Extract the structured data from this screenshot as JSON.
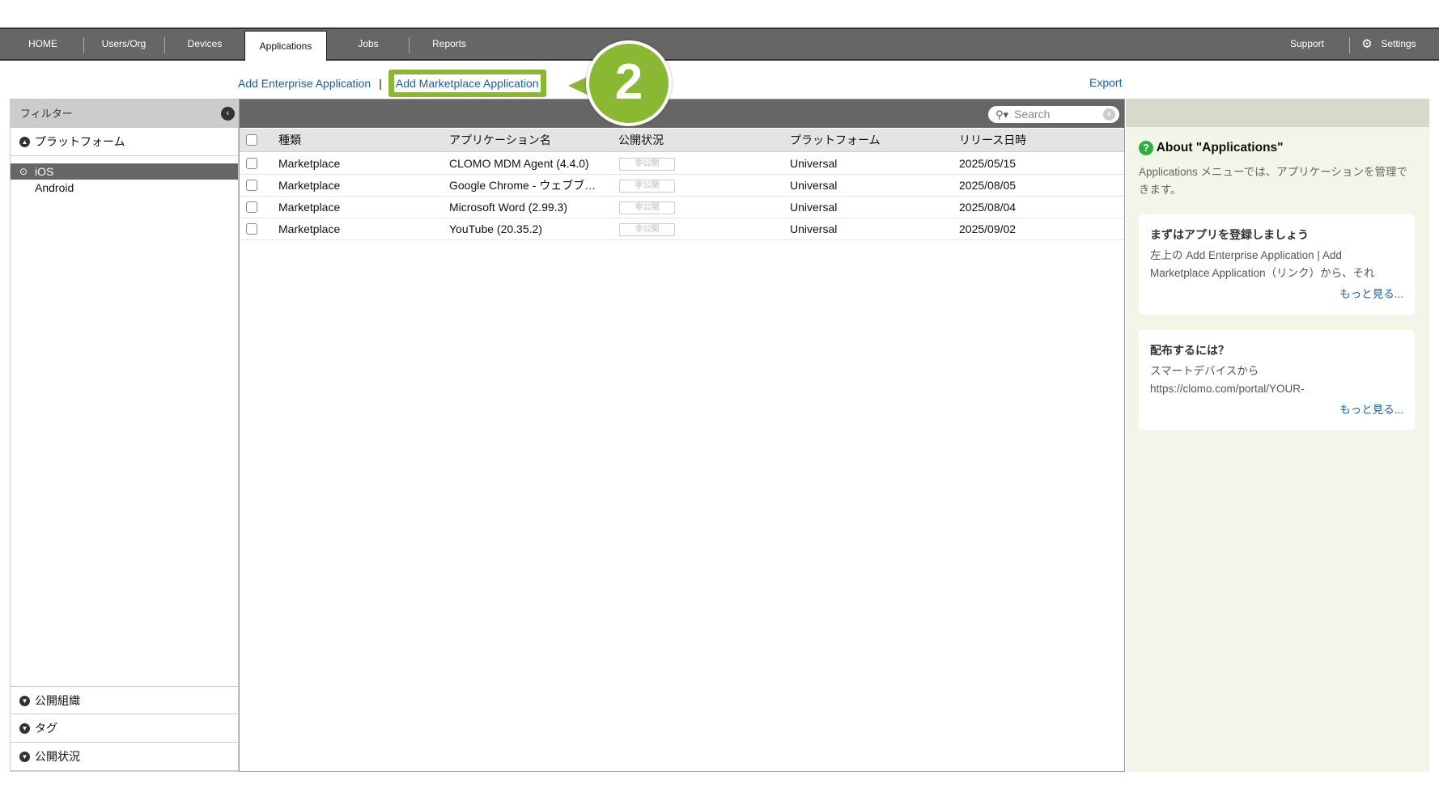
{
  "nav": {
    "tabs": [
      "HOME",
      "Users/Org",
      "Devices",
      "Applications",
      "Jobs",
      "Reports"
    ],
    "active": "Applications",
    "support": "Support",
    "settings": "Settings"
  },
  "actions": {
    "add_enterprise": "Add Enterprise Application",
    "separator": "|",
    "add_marketplace": "Add Marketplace Application",
    "export": "Export",
    "callout_number": "2"
  },
  "filter": {
    "title": "フィルター",
    "platform": "プラットフォーム",
    "platforms": [
      "iOS",
      "Android"
    ],
    "selected": "iOS",
    "sections": [
      "公開組織",
      "タグ",
      "公開状況"
    ]
  },
  "table": {
    "search_placeholder": "Search",
    "headers": [
      "種類",
      "アプリケーション名",
      "公開状況",
      "プラットフォーム",
      "リリース日時"
    ],
    "rows": [
      [
        "Marketplace",
        "CLOMO MDM Agent (4.4.0)",
        "非公開",
        "Universal",
        "2025/05/15"
      ],
      [
        "Marketplace",
        "Google Chrome - ウェブブ…",
        "非公開",
        "Universal",
        "2025/08/05"
      ],
      [
        "Marketplace",
        "Microsoft Word (2.99.3)",
        "非公開",
        "Universal",
        "2025/08/04"
      ],
      [
        "Marketplace",
        "YouTube (20.35.2)",
        "非公開",
        "Universal",
        "2025/09/02"
      ]
    ]
  },
  "help": {
    "title": "About \"Applications\"",
    "intro": "Applications メニューでは、アプリケーションを管理できます。",
    "cards": [
      {
        "title": "まずはアプリを登録しましょう",
        "body": "左上の Add Enterprise Application | Add Marketplace Application（リンク）から、それ",
        "more": "もっと見る..."
      },
      {
        "title": "配布するには？",
        "body": "スマートデバイスから https://clomo.com/portal/YOUR-",
        "more": "もっと見る..."
      }
    ]
  },
  "colors": {
    "accent": "#8ab832",
    "link": "#1a5fa8",
    "nav": "#666666"
  }
}
